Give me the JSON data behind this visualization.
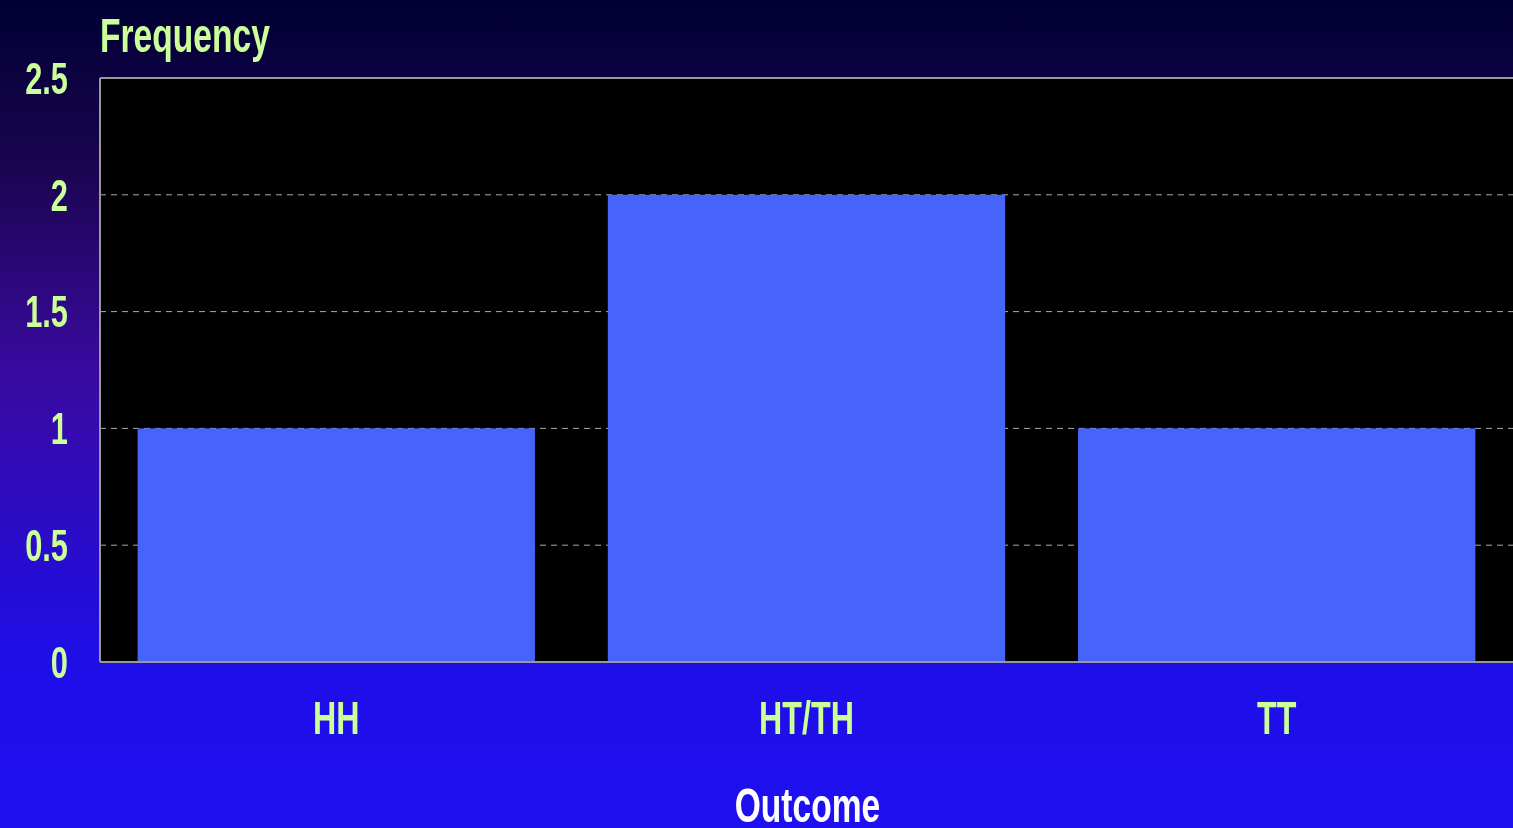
{
  "chart_data": {
    "type": "bar",
    "xlabel": "Outcome",
    "ylabel": "Frequency",
    "categories": [
      "HH",
      "HT/TH",
      "TT"
    ],
    "values": [
      1,
      2,
      1
    ],
    "color": "#4664fa",
    "ylim": [
      0,
      2.5
    ],
    "yticks": [
      0,
      0.5,
      1,
      1.5,
      2,
      2.5
    ],
    "grid": "y"
  }
}
